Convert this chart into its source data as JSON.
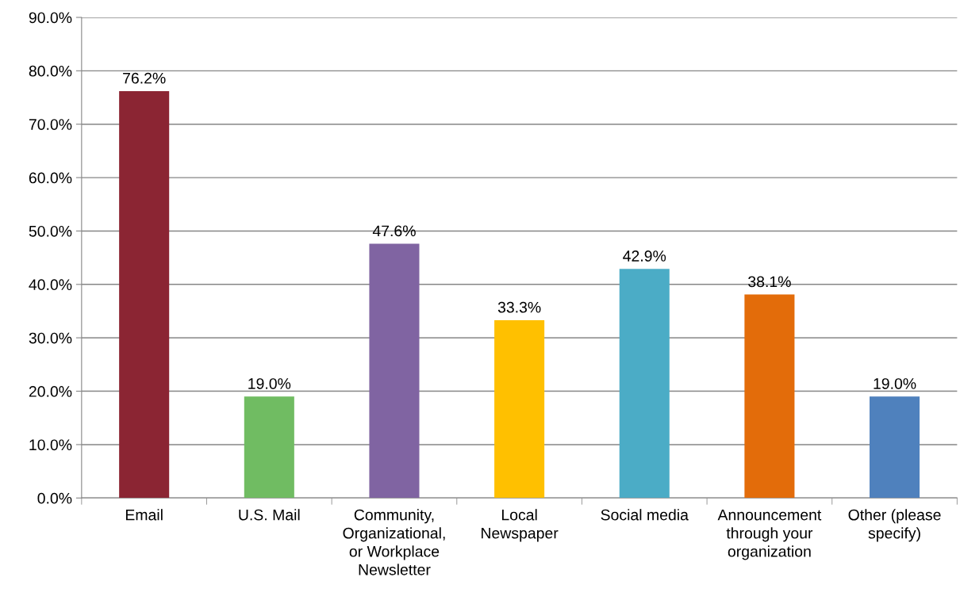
{
  "chart_data": {
    "type": "bar",
    "categories": [
      "Email",
      "U.S. Mail",
      "Community,\nOrganizational,\nor Workplace\nNewsletter",
      "Local\nNewspaper",
      "Social media",
      "Announcement\nthrough your\norganization",
      "Other (please\nspecify)"
    ],
    "values": [
      76.2,
      19.0,
      47.6,
      33.3,
      42.9,
      38.1,
      19.0
    ],
    "colors": [
      "#8b2533",
      "#70bc62",
      "#8064a2",
      "#ffc000",
      "#4bacc6",
      "#e36c0a",
      "#4f81bd"
    ],
    "value_labels": [
      "76.2%",
      "19.0%",
      "47.6%",
      "33.3%",
      "42.9%",
      "38.1%",
      "19.0%"
    ],
    "ylim": [
      0,
      90
    ],
    "yticks": [
      {
        "value": 0,
        "label": "0.0%"
      },
      {
        "value": 10,
        "label": "10.0%"
      },
      {
        "value": 20,
        "label": "20.0%"
      },
      {
        "value": 30,
        "label": "30.0%"
      },
      {
        "value": 40,
        "label": "40.0%"
      },
      {
        "value": 50,
        "label": "50.0%"
      },
      {
        "value": 60,
        "label": "60.0%"
      },
      {
        "value": 70,
        "label": "70.0%"
      },
      {
        "value": 80,
        "label": "80.0%"
      },
      {
        "value": 90,
        "label": "90.0%"
      }
    ],
    "grid": "y",
    "legend": false
  }
}
